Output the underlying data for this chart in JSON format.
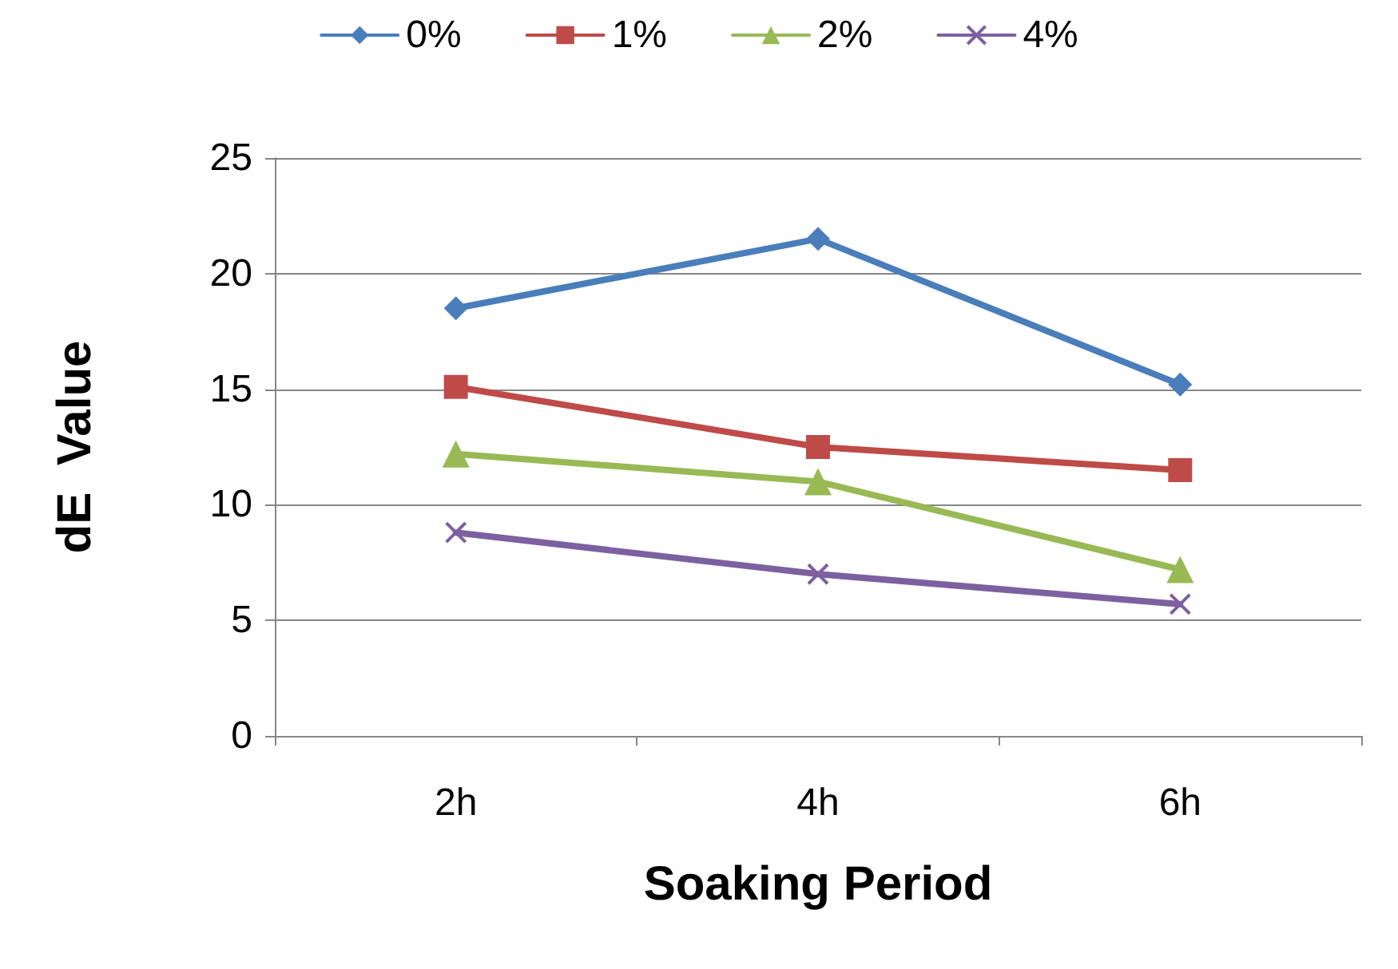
{
  "chart_data": {
    "type": "line",
    "xlabel": "Soaking Period",
    "ylabel": "dE  Value",
    "categories": [
      "2h",
      "4h",
      "6h"
    ],
    "series": [
      {
        "name": "0%",
        "color": "#4a7ebb",
        "marker": "diamond",
        "values": [
          18.5,
          21.5,
          15.2
        ]
      },
      {
        "name": "1%",
        "color": "#be4b48",
        "marker": "square",
        "values": [
          15.1,
          12.5,
          11.5
        ]
      },
      {
        "name": "2%",
        "color": "#98b954",
        "marker": "triangle",
        "values": [
          12.2,
          11.0,
          7.2
        ]
      },
      {
        "name": "4%",
        "color": "#7d60a0",
        "marker": "cross",
        "values": [
          8.8,
          7.0,
          5.7
        ]
      }
    ],
    "ylim": [
      0,
      25
    ],
    "yticks": [
      0,
      5,
      10,
      15,
      20,
      25
    ],
    "grid": "y",
    "legend": "top",
    "line_style": "solid"
  }
}
